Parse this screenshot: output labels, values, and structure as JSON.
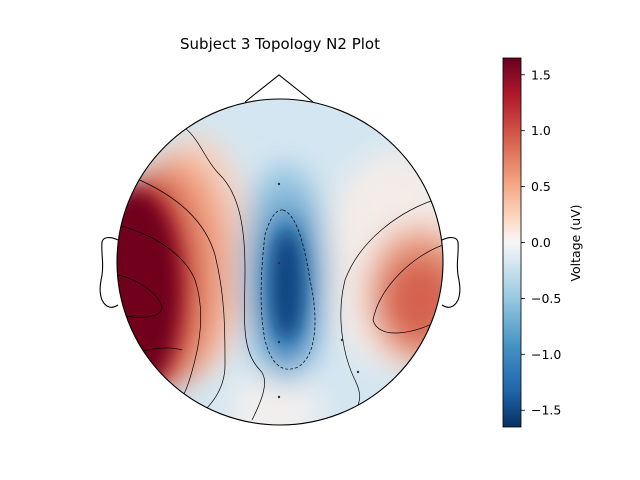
{
  "chart_data": {
    "type": "heatmap",
    "subtype": "eeg-topomap",
    "title": "Subject 3 Topology N2 Plot",
    "colormap": "RdBu_r",
    "colorbar": {
      "label": "Voltage (uV)",
      "range": [
        -1.65,
        1.65
      ],
      "ticks": [
        -1.5,
        -1.0,
        -0.5,
        0.0,
        0.5,
        1.0,
        1.5
      ],
      "tick_labels": [
        "−1.5",
        "−1.0",
        "−0.5",
        "0.0",
        "0.5",
        "1.0",
        "1.5"
      ],
      "placement": "right"
    },
    "colors": {
      "max": "#67001f",
      "high": "#d6604d",
      "mid": "#f7f7f7",
      "low": "#4393c3",
      "min": "#053061",
      "outline": "#000000"
    },
    "regions": [
      {
        "name": "left-temporal",
        "value": 1.65
      },
      {
        "name": "frontal-midline",
        "value": -0.4
      },
      {
        "name": "central-midline",
        "value": -1.6
      },
      {
        "name": "right-temporal",
        "value": 1.0
      },
      {
        "name": "occipital",
        "value": 0.2
      }
    ]
  }
}
